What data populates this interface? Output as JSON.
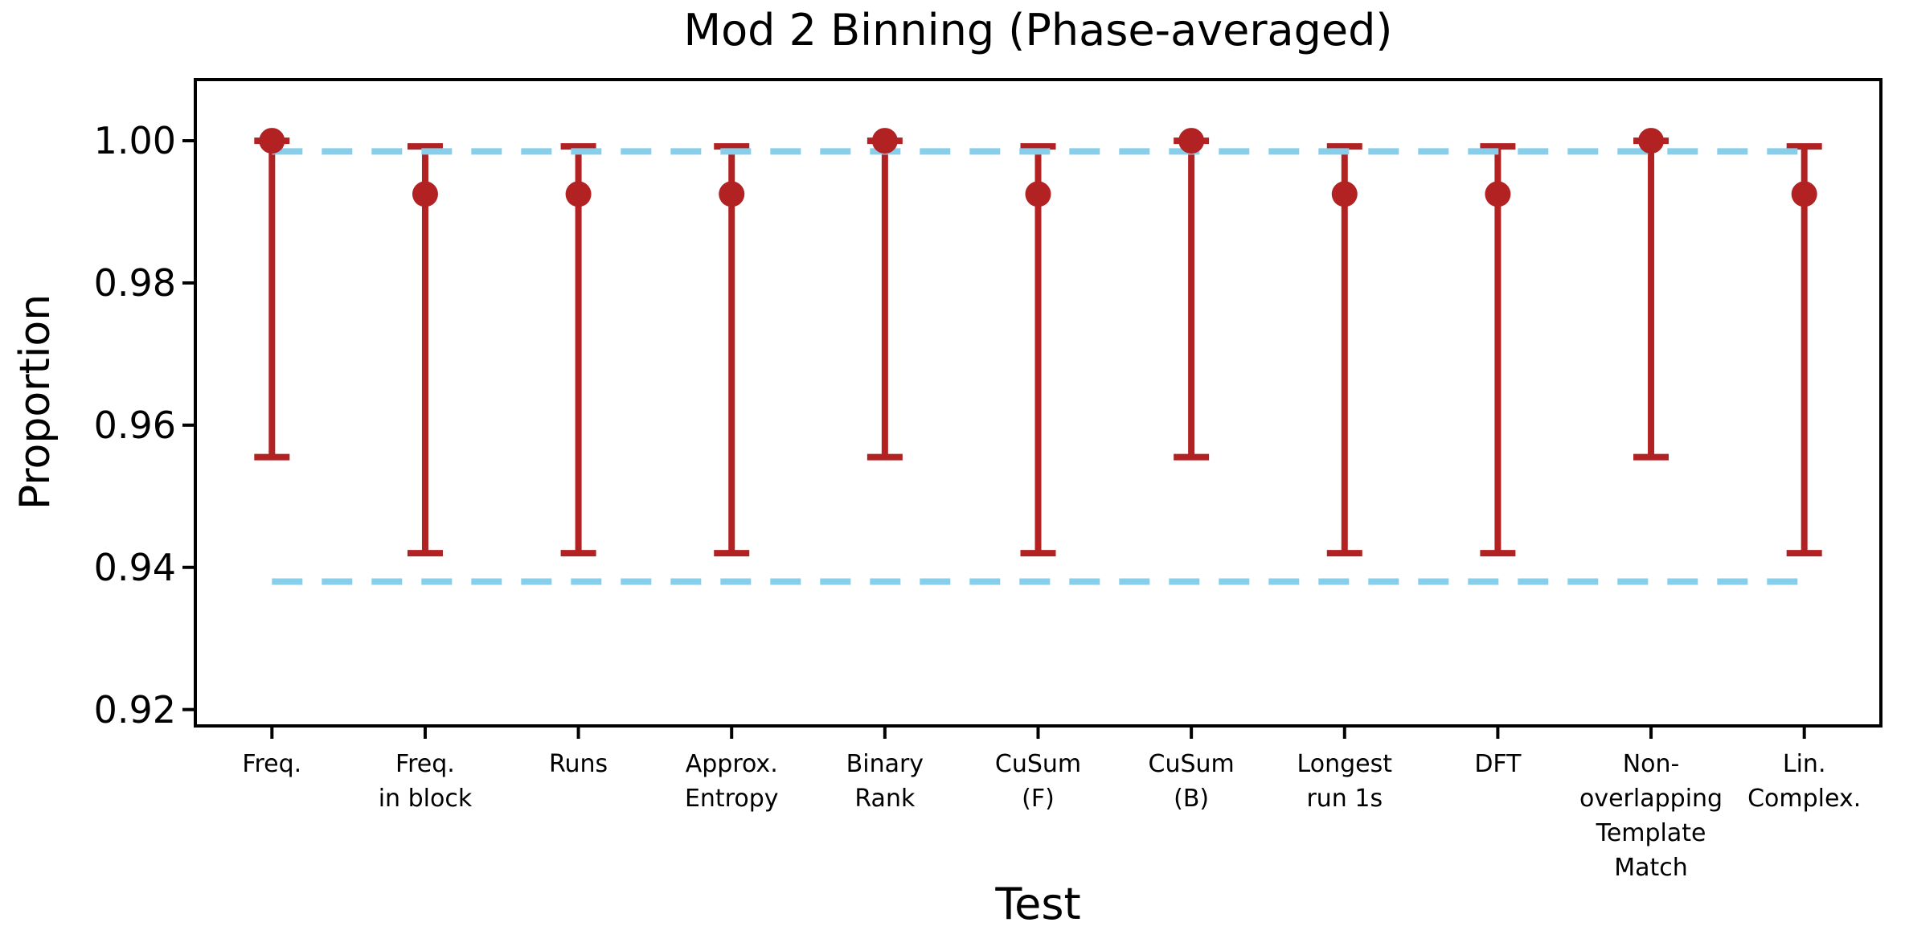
{
  "chart_data": {
    "type": "scatter",
    "subtype": "errorbar",
    "title": "Mod 2 Binning (Phase-averaged)",
    "xlabel": "Test",
    "ylabel": "Proportion",
    "ylim": [
      0.9177,
      1.0086
    ],
    "yticks": [
      0.92,
      0.94,
      0.96,
      0.98,
      1.0
    ],
    "grid": false,
    "legend": "none",
    "categories": [
      "Freq.",
      "Freq.\nin block",
      "Runs",
      "Approx.\nEntropy",
      "Binary\nRank",
      "CuSum\n(F)",
      "CuSum\n(B)",
      "Longest\nrun 1s",
      "DFT",
      "Non-\noverlapping\nTemplate\nMatch",
      "Lin.\nComplex."
    ],
    "series": [
      {
        "name": "proportion-with-ci",
        "marker": "circle",
        "color": "#b22222",
        "points": [
          {
            "category": "Freq.",
            "y": 1.0,
            "lo": 0.9555,
            "hi": 1.0
          },
          {
            "category": "Freq.\nin block",
            "y": 0.9925,
            "lo": 0.942,
            "hi": 0.9992
          },
          {
            "category": "Runs",
            "y": 0.9925,
            "lo": 0.942,
            "hi": 0.9992
          },
          {
            "category": "Approx.\nEntropy",
            "y": 0.9925,
            "lo": 0.942,
            "hi": 0.9992
          },
          {
            "category": "Binary\nRank",
            "y": 1.0,
            "lo": 0.9555,
            "hi": 1.0
          },
          {
            "category": "CuSum\n(F)",
            "y": 0.9925,
            "lo": 0.942,
            "hi": 0.9992
          },
          {
            "category": "CuSum\n(B)",
            "y": 1.0,
            "lo": 0.9555,
            "hi": 1.0
          },
          {
            "category": "Longest\nrun 1s",
            "y": 0.9925,
            "lo": 0.942,
            "hi": 0.9992
          },
          {
            "category": "DFT",
            "y": 0.9925,
            "lo": 0.942,
            "hi": 0.9992
          },
          {
            "category": "Non-\noverlapping\nTemplate\nMatch",
            "y": 1.0,
            "lo": 0.9555,
            "hi": 1.0
          },
          {
            "category": "Lin.\nComplex.",
            "y": 0.9925,
            "lo": 0.942,
            "hi": 0.9992
          }
        ]
      }
    ],
    "reference_lines": [
      {
        "name": "upper-bound",
        "y": 0.9985,
        "color": "#87ceeb",
        "style": "dashed"
      },
      {
        "name": "lower-bound",
        "y": 0.938,
        "color": "#87ceeb",
        "style": "dashed"
      }
    ],
    "colors": {
      "errorbar": "#b22222",
      "reference": "#87ceeb",
      "axis": "#000000",
      "background": "#ffffff"
    }
  }
}
